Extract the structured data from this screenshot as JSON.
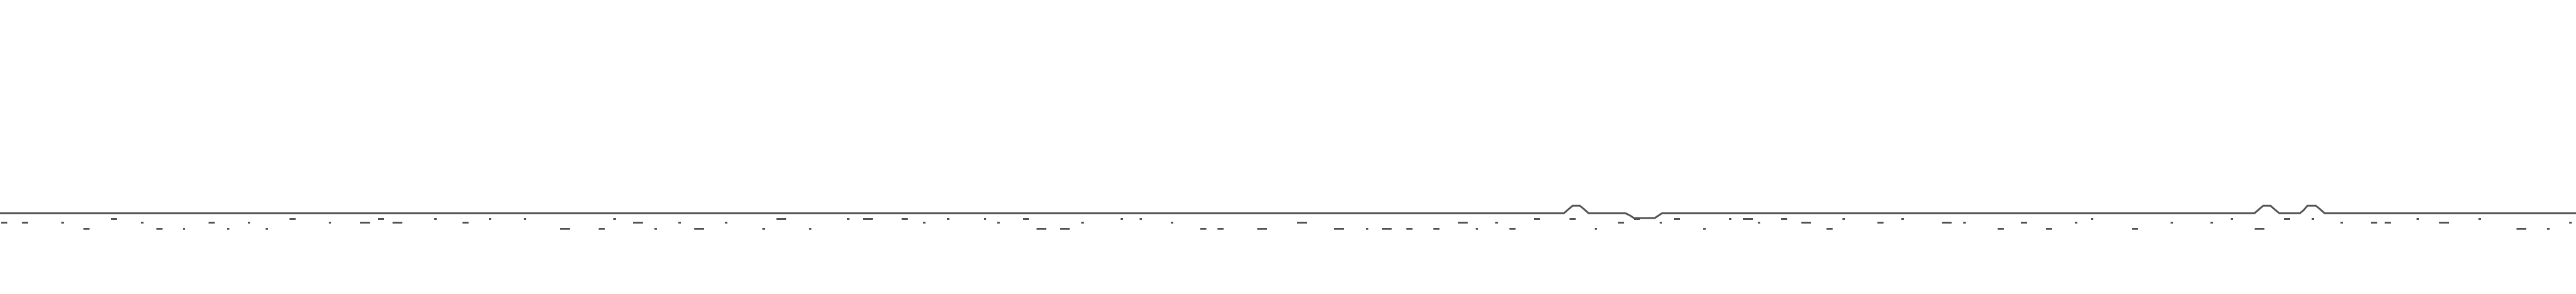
{
  "game": {
    "scene": "endless-runner-ground",
    "colors": {
      "background": "#ffffff",
      "ground": "#535353"
    },
    "sprites": {
      "ground_line": "ground-line",
      "ground_bumps": "ground-bump",
      "ground_dip": "ground-dip",
      "ground_specks": "ground-speck"
    }
  }
}
